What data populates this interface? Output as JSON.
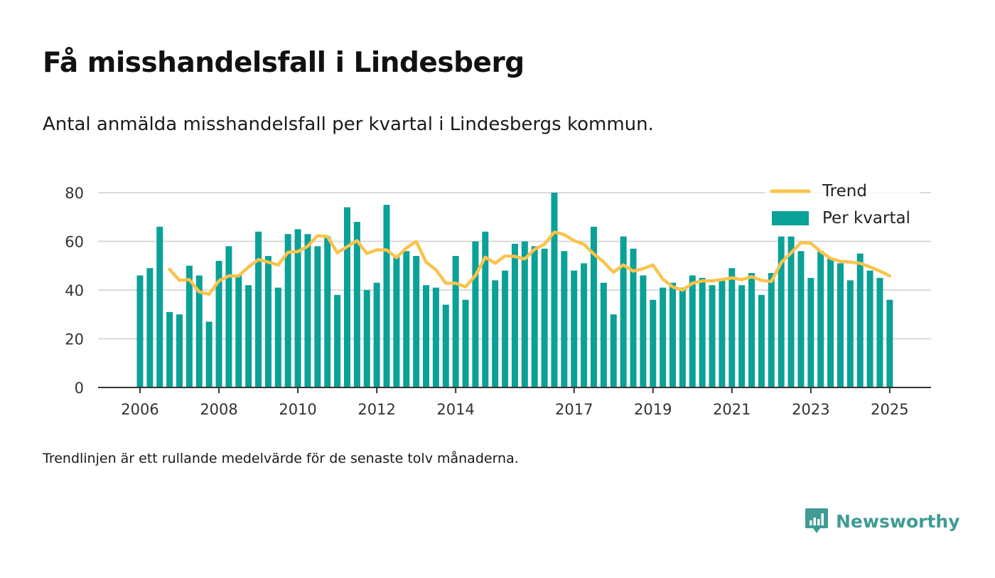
{
  "header": {
    "title": "Få misshandelsfall i Lindesberg",
    "subtitle": "Antal anmälda misshandelsfall per kvartal i Lindesbergs kommun."
  },
  "footer": {
    "note": "Trendlinjen är ett rullande medelvärde för de senaste tolv månaderna.",
    "brand": "Newsworthy"
  },
  "colors": {
    "bar": "#0aa198",
    "trend": "#fbc34b",
    "grid": "#d9d9d9",
    "axis": "#333333",
    "brand": "#3f9b95"
  },
  "icons": {
    "brand_logo": "newsworthy-logo-icon"
  },
  "chart_data": {
    "type": "bar",
    "title": "Få misshandelsfall i Lindesberg",
    "subtitle": "Antal anmälda misshandelsfall per kvartal i Lindesbergs kommun.",
    "xlabel": "",
    "ylabel": "",
    "ylim": [
      0,
      80
    ],
    "yticks": [
      0,
      20,
      40,
      60,
      80
    ],
    "grid": true,
    "legend_position": "top-right",
    "x_start": "2006 Q1",
    "x_end": "2025 Q1",
    "x_tick_labels": [
      {
        "year": "2006",
        "quarter": 0
      },
      {
        "year": "2008",
        "quarter": 8
      },
      {
        "year": "2010",
        "quarter": 16
      },
      {
        "year": "2012",
        "quarter": 24
      },
      {
        "year": "2014",
        "quarter": 32
      },
      {
        "year": "2017",
        "quarter": 44
      },
      {
        "year": "2019",
        "quarter": 52
      },
      {
        "year": "2021",
        "quarter": 60
      },
      {
        "year": "2023",
        "quarter": 68
      },
      {
        "year": "2025",
        "quarter": 76
      }
    ],
    "series": [
      {
        "name": "Per kvartal",
        "kind": "bar",
        "values": [
          46,
          49,
          66,
          31,
          30,
          50,
          46,
          27,
          52,
          58,
          46,
          42,
          64,
          54,
          41,
          63,
          65,
          63,
          58,
          62,
          38,
          74,
          68,
          40,
          43,
          75,
          54,
          56,
          54,
          42,
          41,
          34,
          54,
          36,
          60,
          64,
          44,
          48,
          59,
          60,
          58,
          57,
          80,
          56,
          48,
          51,
          66,
          43,
          30,
          62,
          57,
          46,
          36,
          41,
          43,
          41,
          46,
          45,
          42,
          44,
          49,
          42,
          47,
          38,
          47,
          62,
          62,
          56,
          45,
          56,
          53,
          51,
          44,
          55,
          48,
          45,
          36
        ]
      },
      {
        "name": "Trend",
        "kind": "line",
        "values": [
          null,
          null,
          null,
          48.5,
          44.0,
          44.3,
          39.3,
          38.3,
          43.8,
          45.8,
          45.8,
          49.5,
          52.5,
          51.5,
          50.3,
          55.5,
          55.8,
          58.0,
          62.3,
          62.0,
          55.3,
          57.8,
          60.3,
          55.0,
          56.5,
          56.5,
          53.3,
          57.3,
          60.0,
          51.5,
          48.3,
          42.8,
          42.8,
          41.3,
          46.0,
          53.5,
          51.0,
          54.0,
          53.8,
          52.8,
          56.8,
          58.8,
          63.8,
          62.8,
          60.3,
          58.8,
          54.8,
          51.5,
          47.3,
          50.3,
          47.8,
          48.8,
          50.3,
          44.5,
          41.3,
          40.0,
          42.8,
          43.8,
          43.8,
          44.3,
          45.0,
          44.3,
          45.5,
          44.0,
          43.5,
          51.3,
          55.3,
          59.5,
          59.3,
          55.8,
          53.0,
          51.8,
          51.5,
          51.0,
          49.5,
          47.8,
          45.8
        ]
      }
    ]
  }
}
